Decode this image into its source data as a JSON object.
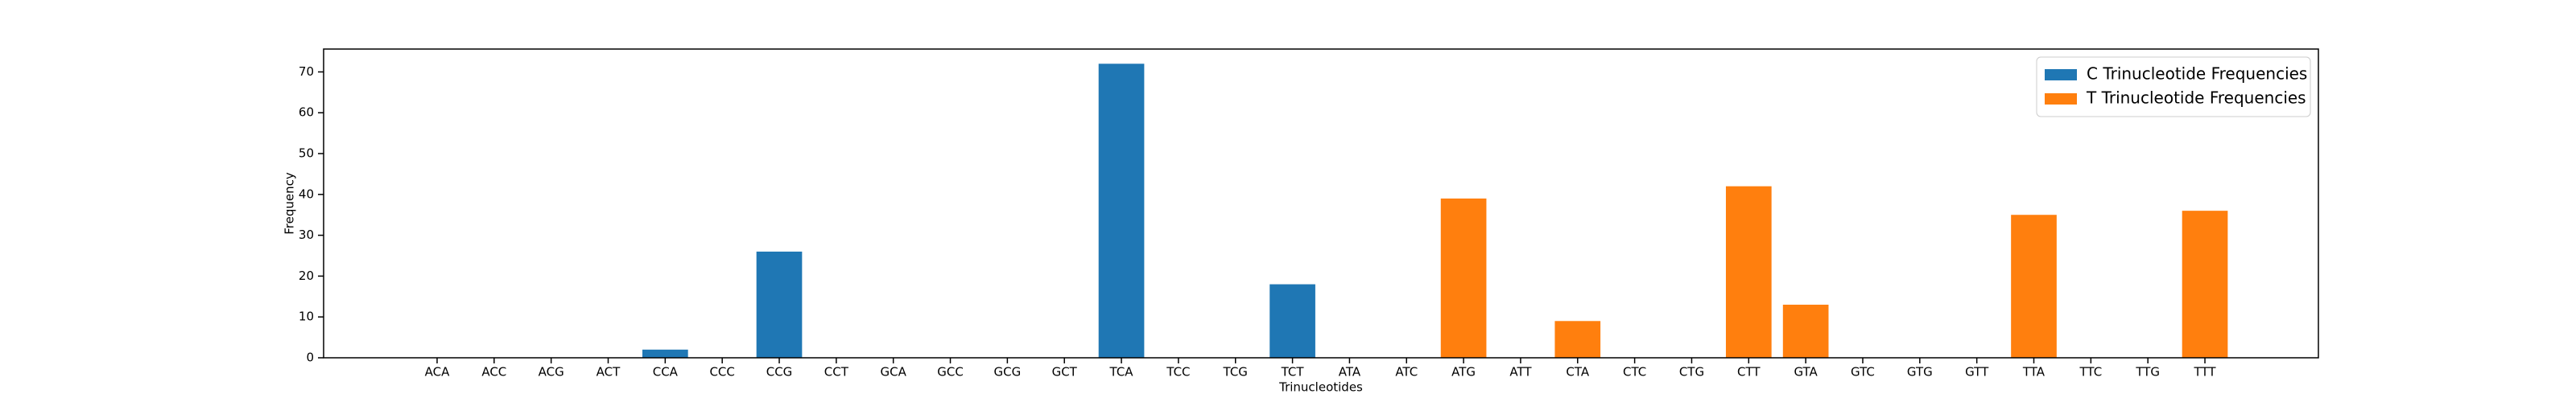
{
  "chart_data": {
    "type": "bar",
    "xlabel": "Trinucleotides",
    "ylabel": "Frequency",
    "categories": [
      "ACA",
      "ACC",
      "ACG",
      "ACT",
      "CCA",
      "CCC",
      "CCG",
      "CCT",
      "GCA",
      "GCC",
      "GCG",
      "GCT",
      "TCA",
      "TCC",
      "TCG",
      "TCT",
      "ATA",
      "ATC",
      "ATG",
      "ATT",
      "CTA",
      "CTC",
      "CTG",
      "CTT",
      "GTA",
      "GTC",
      "GTG",
      "GTT",
      "TTA",
      "TTC",
      "TTG",
      "TTT"
    ],
    "series": [
      {
        "name": "C Trinucleotide Frequencies",
        "color": "#1f77b4",
        "values": [
          0,
          0,
          0,
          0,
          2,
          0,
          26,
          0,
          0,
          0,
          0,
          0,
          72,
          0,
          0,
          18,
          null,
          null,
          null,
          null,
          null,
          null,
          null,
          null,
          null,
          null,
          null,
          null,
          null,
          null,
          null,
          null
        ]
      },
      {
        "name": "T Trinucleotide Frequencies",
        "color": "#ff7f0e",
        "values": [
          null,
          null,
          null,
          null,
          null,
          null,
          null,
          null,
          null,
          null,
          null,
          null,
          null,
          null,
          null,
          null,
          0,
          0,
          39,
          0,
          9,
          0,
          0,
          42,
          13,
          0,
          0,
          0,
          35,
          0,
          0,
          36
        ]
      }
    ],
    "ylim": [
      0,
      75.6
    ],
    "yticks": [
      0,
      10,
      20,
      30,
      40,
      50,
      60,
      70
    ],
    "legend": "upper right",
    "grid": false
  }
}
